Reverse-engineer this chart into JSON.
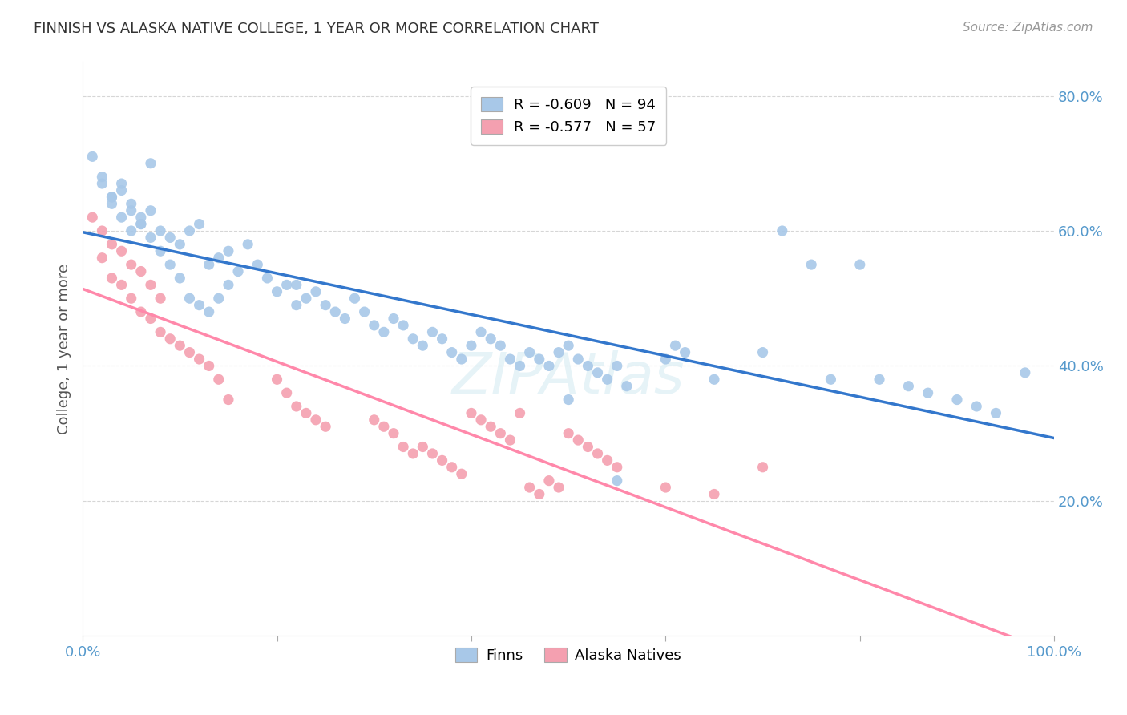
{
  "title": "FINNISH VS ALASKA NATIVE COLLEGE, 1 YEAR OR MORE CORRELATION CHART",
  "source": "Source: ZipAtlas.com",
  "ylabel": "College, 1 year or more",
  "x_min": 0.0,
  "x_max": 1.0,
  "y_min": 0.0,
  "y_max": 0.85,
  "x_ticks": [
    0.0,
    0.2,
    0.4,
    0.6,
    0.8,
    1.0
  ],
  "x_tick_labels": [
    "0.0%",
    "",
    "",
    "",
    "",
    "100.0%"
  ],
  "y_ticks": [
    0.2,
    0.4,
    0.6,
    0.8
  ],
  "y_tick_labels": [
    "20.0%",
    "40.0%",
    "60.0%",
    "80.0%"
  ],
  "legend_entry_0": "R = -0.609   N = 94",
  "legend_entry_1": "R = -0.577   N = 57",
  "legend_labels": [
    "Finns",
    "Alaska Natives"
  ],
  "tick_color": "#5599cc",
  "grid_color": "#cccccc",
  "line_color_finns": "#3377cc",
  "line_color_alaska": "#ff88aa",
  "scatter_color_finns": "#a8c8e8",
  "scatter_color_alaska": "#f4a0b0",
  "finns_x": [
    0.01,
    0.02,
    0.03,
    0.04,
    0.05,
    0.06,
    0.07,
    0.02,
    0.03,
    0.04,
    0.05,
    0.06,
    0.07,
    0.08,
    0.09,
    0.1,
    0.11,
    0.12,
    0.13,
    0.14,
    0.15,
    0.16,
    0.17,
    0.18,
    0.19,
    0.2,
    0.21,
    0.22,
    0.03,
    0.04,
    0.05,
    0.06,
    0.07,
    0.08,
    0.09,
    0.1,
    0.11,
    0.12,
    0.13,
    0.14,
    0.15,
    0.22,
    0.23,
    0.24,
    0.25,
    0.26,
    0.27,
    0.28,
    0.29,
    0.3,
    0.31,
    0.32,
    0.33,
    0.34,
    0.35,
    0.36,
    0.37,
    0.38,
    0.39,
    0.4,
    0.41,
    0.42,
    0.43,
    0.44,
    0.45,
    0.46,
    0.47,
    0.48,
    0.49,
    0.5,
    0.51,
    0.52,
    0.53,
    0.54,
    0.55,
    0.6,
    0.61,
    0.62,
    0.65,
    0.7,
    0.72,
    0.75,
    0.77,
    0.8,
    0.82,
    0.85,
    0.87,
    0.9,
    0.92,
    0.94,
    0.5,
    0.55,
    0.56,
    0.97
  ],
  "finns_y": [
    0.71,
    0.67,
    0.65,
    0.66,
    0.64,
    0.62,
    0.7,
    0.68,
    0.64,
    0.62,
    0.6,
    0.61,
    0.63,
    0.6,
    0.59,
    0.58,
    0.6,
    0.61,
    0.55,
    0.56,
    0.57,
    0.54,
    0.58,
    0.55,
    0.53,
    0.51,
    0.52,
    0.49,
    0.65,
    0.67,
    0.63,
    0.61,
    0.59,
    0.57,
    0.55,
    0.53,
    0.5,
    0.49,
    0.48,
    0.5,
    0.52,
    0.52,
    0.5,
    0.51,
    0.49,
    0.48,
    0.47,
    0.5,
    0.48,
    0.46,
    0.45,
    0.47,
    0.46,
    0.44,
    0.43,
    0.45,
    0.44,
    0.42,
    0.41,
    0.43,
    0.45,
    0.44,
    0.43,
    0.41,
    0.4,
    0.42,
    0.41,
    0.4,
    0.42,
    0.43,
    0.41,
    0.4,
    0.39,
    0.38,
    0.4,
    0.41,
    0.43,
    0.42,
    0.38,
    0.42,
    0.6,
    0.55,
    0.38,
    0.55,
    0.38,
    0.37,
    0.36,
    0.35,
    0.34,
    0.33,
    0.35,
    0.23,
    0.37,
    0.39
  ],
  "alaska_x": [
    0.01,
    0.02,
    0.03,
    0.04,
    0.05,
    0.06,
    0.07,
    0.08,
    0.02,
    0.03,
    0.04,
    0.05,
    0.06,
    0.07,
    0.08,
    0.09,
    0.1,
    0.11,
    0.12,
    0.13,
    0.14,
    0.15,
    0.2,
    0.21,
    0.22,
    0.23,
    0.24,
    0.25,
    0.3,
    0.31,
    0.32,
    0.33,
    0.34,
    0.35,
    0.36,
    0.37,
    0.38,
    0.39,
    0.4,
    0.41,
    0.42,
    0.43,
    0.44,
    0.45,
    0.46,
    0.47,
    0.48,
    0.49,
    0.5,
    0.51,
    0.52,
    0.53,
    0.54,
    0.55,
    0.6,
    0.65,
    0.7
  ],
  "alaska_y": [
    0.62,
    0.6,
    0.58,
    0.57,
    0.55,
    0.54,
    0.52,
    0.5,
    0.56,
    0.53,
    0.52,
    0.5,
    0.48,
    0.47,
    0.45,
    0.44,
    0.43,
    0.42,
    0.41,
    0.4,
    0.38,
    0.35,
    0.38,
    0.36,
    0.34,
    0.33,
    0.32,
    0.31,
    0.32,
    0.31,
    0.3,
    0.28,
    0.27,
    0.28,
    0.27,
    0.26,
    0.25,
    0.24,
    0.33,
    0.32,
    0.31,
    0.3,
    0.29,
    0.33,
    0.22,
    0.21,
    0.23,
    0.22,
    0.3,
    0.29,
    0.28,
    0.27,
    0.26,
    0.25,
    0.22,
    0.21,
    0.25
  ]
}
